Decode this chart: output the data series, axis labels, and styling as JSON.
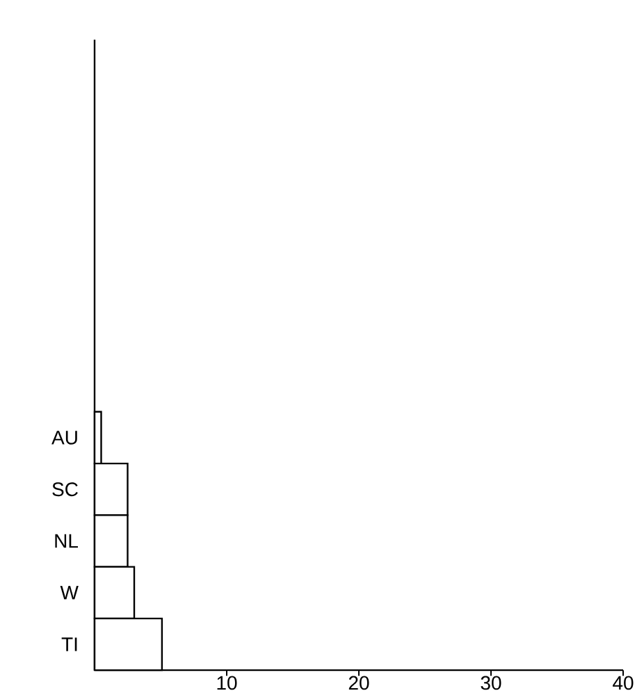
{
  "chart_data": {
    "type": "bar",
    "orientation": "horizontal",
    "categories": [
      "AU",
      "SC",
      "NL",
      "W",
      "TI"
    ],
    "values": [
      0.5,
      2.5,
      2.5,
      3.0,
      5.1
    ],
    "color": "#ffffff",
    "xlim": [
      0,
      40
    ],
    "xticks": [
      10,
      20,
      30,
      40
    ],
    "grid": false
  }
}
